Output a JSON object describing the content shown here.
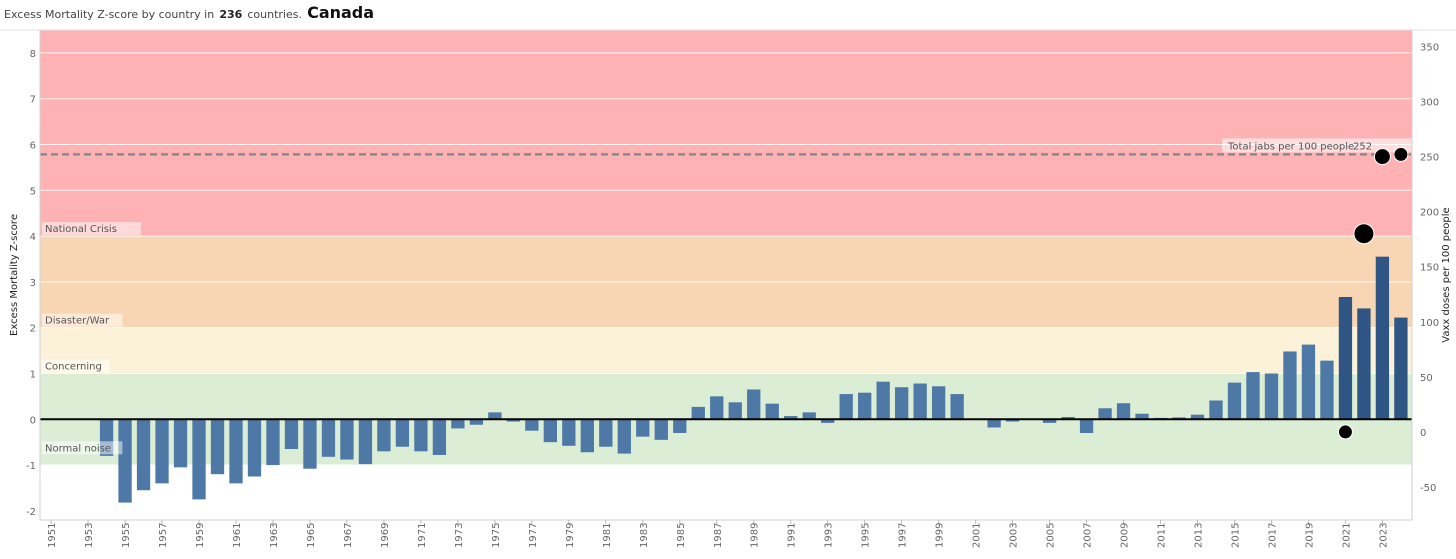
{
  "header": {
    "title_prefix": "Excess Mortality Z-score by country in",
    "country_count": "236",
    "title_suffix": "countries.",
    "country": "Canada"
  },
  "chart_data": {
    "type": "bar",
    "ylabel": "Excess Mortality Z-score",
    "y2label": "Vaxx doses per 100 people",
    "ylim": [
      -2.2,
      8.5
    ],
    "y2lim": [
      -80,
      365
    ],
    "yticks": [
      -2,
      -1,
      0,
      1,
      2,
      3,
      4,
      5,
      6,
      7,
      8
    ],
    "y2ticks": [
      -50,
      0,
      50,
      100,
      150,
      200,
      250,
      300,
      350
    ],
    "xlim": [
      1950.4,
      2024.6
    ],
    "xticks": [
      1951,
      1953,
      1955,
      1957,
      1959,
      1961,
      1963,
      1965,
      1967,
      1969,
      1971,
      1973,
      1975,
      1977,
      1979,
      1981,
      1983,
      1985,
      1987,
      1989,
      1991,
      1993,
      1995,
      1997,
      1999,
      2001,
      2003,
      2005,
      2007,
      2009,
      2011,
      2013,
      2015,
      2017,
      2019,
      2021,
      2023
    ],
    "bands": [
      {
        "label": "Normal noise",
        "from": -1,
        "to": 1,
        "color": "#dbeed5"
      },
      {
        "label": "Concerning",
        "from": 1,
        "to": 2,
        "color": "#fbf2d9"
      },
      {
        "label": "Disaster/War",
        "from": 2,
        "to": 4,
        "color": "#f8d6b3"
      },
      {
        "label": "National Crisis",
        "from": 4,
        "to": 8.5,
        "color": "#ffb2b3"
      }
    ],
    "reference_line": {
      "label": "Total jabs per 100 people",
      "value_label": "252",
      "value": 252
    },
    "bars": {
      "x": [
        1954,
        1955,
        1956,
        1957,
        1958,
        1959,
        1960,
        1961,
        1962,
        1963,
        1964,
        1965,
        1966,
        1967,
        1968,
        1969,
        1970,
        1971,
        1972,
        1973,
        1974,
        1975,
        1976,
        1977,
        1978,
        1979,
        1980,
        1981,
        1982,
        1983,
        1984,
        1985,
        1986,
        1987,
        1988,
        1989,
        1990,
        1991,
        1992,
        1993,
        1994,
        1995,
        1996,
        1997,
        1998,
        1999,
        2000,
        2001,
        2002,
        2003,
        2004,
        2005,
        2006,
        2007,
        2008,
        2009,
        2010,
        2011,
        2012,
        2013,
        2014,
        2015,
        2016,
        2017,
        2018,
        2019,
        2020,
        2021,
        2022,
        2023,
        2024
      ],
      "values": [
        -0.8,
        -1.82,
        -1.55,
        -1.4,
        -1.05,
        -1.75,
        -1.2,
        -1.4,
        -1.25,
        -1.0,
        -0.65,
        -1.08,
        -0.82,
        -0.88,
        -0.98,
        -0.7,
        -0.6,
        -0.7,
        -0.78,
        -0.2,
        -0.12,
        0.15,
        -0.05,
        -0.25,
        -0.5,
        -0.58,
        -0.72,
        -0.6,
        -0.75,
        -0.38,
        -0.45,
        -0.3,
        0.27,
        0.5,
        0.37,
        0.65,
        0.34,
        0.07,
        0.15,
        -0.08,
        0.55,
        0.58,
        0.82,
        0.7,
        0.78,
        0.72,
        0.55,
        0.0,
        -0.18,
        -0.05,
        0.0,
        -0.08,
        0.05,
        -0.3,
        0.24,
        0.35,
        0.12,
        0.03,
        0.04,
        0.1,
        0.41,
        0.8,
        1.03,
        1.0,
        1.48,
        1.63,
        1.28,
        2.67,
        2.42,
        3.55,
        2.22
      ],
      "highlight_from": 2021
    },
    "vaxx_points": {
      "x": [
        2021,
        2022,
        2023,
        2024
      ],
      "values": [
        0,
        180,
        250,
        252
      ],
      "sizes": [
        7,
        10,
        8,
        7
      ]
    }
  }
}
